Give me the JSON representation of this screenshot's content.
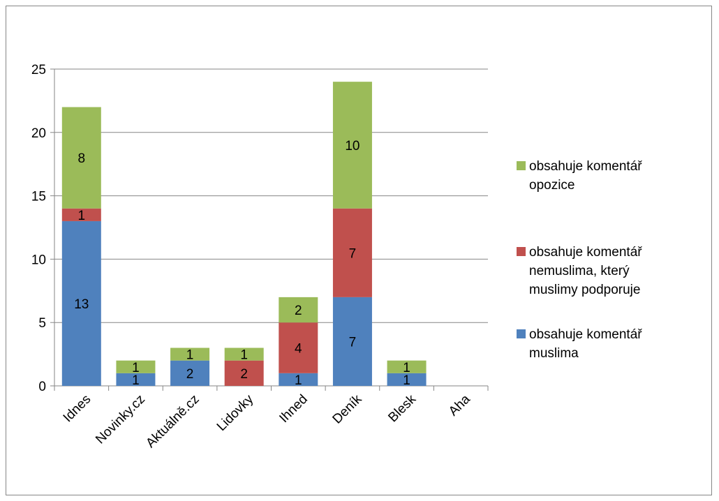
{
  "chart_data": {
    "type": "bar",
    "stacked": true,
    "categories": [
      "Idnes",
      "Novinky.cz",
      "Aktuálně.cz",
      "Lidovky",
      "Ihned",
      "Deník",
      "Blesk",
      "Aha"
    ],
    "series": [
      {
        "name": "obsahuje komentář muslima",
        "color": "#4F81BD",
        "values": [
          13,
          1,
          2,
          0,
          1,
          7,
          1,
          0
        ],
        "labels": [
          "13",
          "1",
          "2",
          "",
          "1",
          "7",
          "1",
          ""
        ]
      },
      {
        "name": "obsahuje komentář nemuslima, který muslimy podporuje",
        "color": "#C0504D",
        "values": [
          1,
          0,
          0,
          2,
          4,
          7,
          0,
          0
        ],
        "labels": [
          "1",
          "",
          "",
          "2",
          "4",
          "7",
          "",
          ""
        ]
      },
      {
        "name": "obsahuje komentář opozice",
        "color": "#9BBB59",
        "values": [
          8,
          1,
          1,
          1,
          2,
          10,
          1,
          0
        ],
        "labels": [
          "8",
          "1",
          "1",
          "1",
          "2",
          "10",
          "1",
          ""
        ]
      }
    ],
    "legend_order": [
      2,
      1,
      0
    ],
    "legend_lines": [
      [
        "obsahuje komentář",
        "opozice"
      ],
      [
        "obsahuje komentář",
        "nemuslima, který",
        "muslimy podporuje"
      ],
      [
        "obsahuje komentář",
        "muslima"
      ]
    ],
    "yticks": [
      0,
      5,
      10,
      15,
      20,
      25
    ],
    "ylim": [
      0,
      25
    ],
    "grid": true,
    "legend_position": "right",
    "title": "",
    "xlabel": "",
    "ylabel": ""
  }
}
